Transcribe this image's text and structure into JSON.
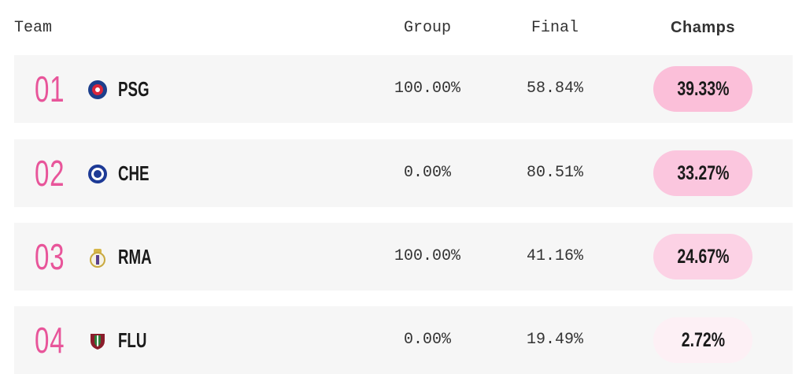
{
  "table": {
    "header": [
      "Team",
      "Group",
      "Final",
      "Champs"
    ],
    "rows": [
      {
        "rank": "01",
        "team": "PSG",
        "group": "100.00%",
        "final": "58.84%",
        "champs": "39.33%"
      },
      {
        "rank": "02",
        "team": "CHE",
        "group": "0.00%",
        "final": "80.51%",
        "champs": "33.27%"
      },
      {
        "rank": "03",
        "team": "RMA",
        "group": "100.00%",
        "final": "41.16%",
        "champs": "24.67%"
      },
      {
        "rank": "04",
        "team": "FLU",
        "group": "0.00%",
        "final": "19.49%",
        "champs": "2.72%"
      }
    ]
  }
}
